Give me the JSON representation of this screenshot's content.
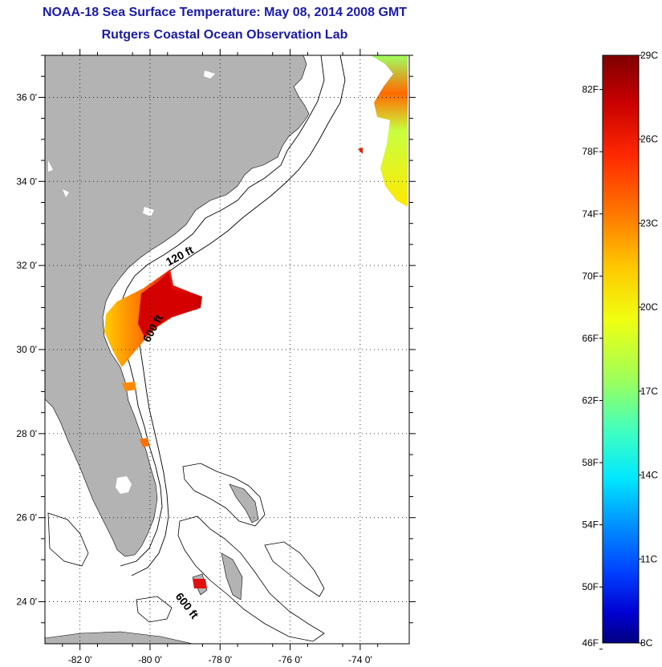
{
  "title": "NOAA-18 Sea Surface Temperature:  May 08, 2014 2008 GMT",
  "subtitle": "Rutgers Coastal Ocean Observation Lab",
  "map": {
    "lon_range": [
      -83.0,
      -72.6
    ],
    "lat_range": [
      23.0,
      37.0
    ],
    "lon_ticks": [
      -82,
      -80,
      -78,
      -76,
      -74
    ],
    "lon_tick_labels": [
      "-82 0'",
      "-80 0'",
      "-78 0'",
      "-76 0'",
      "-74 0'"
    ],
    "lat_ticks": [
      24,
      26,
      28,
      30,
      32,
      34,
      36
    ],
    "lat_tick_labels": [
      "24 0'",
      "26 0'",
      "28 0'",
      "30 0'",
      "32 0'",
      "34 0'",
      "36 0'"
    ],
    "land_color": "#b3b3b3",
    "grid": "dotted",
    "contour_labels": [
      "120 ft",
      "600 ft",
      "600 ft"
    ]
  },
  "colorbar": {
    "celsius_labels": [
      "29C",
      "26C",
      "23C",
      "20C",
      "17C",
      "14C",
      "11C",
      "8C"
    ],
    "fahrenheit_labels": [
      "82F",
      "78F",
      "74F",
      "70F",
      "66F",
      "62F",
      "58F",
      "54F",
      "50F",
      "46F"
    ],
    "min_c": 8,
    "max_c": 29,
    "colors_top_to_bottom": [
      "#800000",
      "#c80000",
      "#ff2800",
      "#ff7800",
      "#ffc800",
      "#f0ff10",
      "#a0ff58",
      "#40ffc0",
      "#00e8ff",
      "#0090ff",
      "#0040ff",
      "#0000d0",
      "#000080"
    ]
  }
}
